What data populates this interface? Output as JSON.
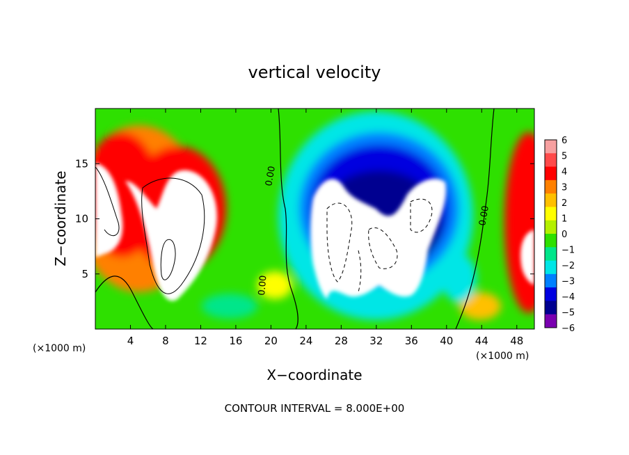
{
  "chart_data": {
    "type": "heatmap",
    "title": "vertical velocity",
    "xlabel": "X−coordinate",
    "ylabel": "Z−coordinate",
    "x_unit": "(×1000 m)",
    "y_unit": "(×1000 m)",
    "footer": "CONTOUR INTERVAL = 8.000E+00",
    "xlim": [
      0,
      50
    ],
    "ylim": [
      0,
      20
    ],
    "x_ticks": [
      4,
      8,
      12,
      16,
      20,
      24,
      28,
      32,
      36,
      40,
      44,
      48
    ],
    "y_ticks": [
      5,
      10,
      15
    ],
    "colorbar": {
      "ticks": [
        6,
        5,
        4,
        3,
        2,
        1,
        0,
        -1,
        -2,
        -3,
        -4,
        -5,
        -6
      ],
      "colors": [
        "#f7a0a0",
        "#ff4a4a",
        "#ff0000",
        "#ff8000",
        "#ffc000",
        "#ffff00",
        "#b4f000",
        "#2ee000",
        "#00e68a",
        "#00e6e6",
        "#0080ff",
        "#0000e0",
        "#000090",
        "#7a00b0"
      ]
    },
    "contour_labels": [
      "0.00",
      "0.00",
      "0.00"
    ],
    "features": [
      {
        "kind": "updraft",
        "x": 7.5,
        "z": 9.5,
        "value": "> 6"
      },
      {
        "kind": "updraft",
        "x": 1.5,
        "z": 12.0,
        "value": "> 6"
      },
      {
        "kind": "updraft",
        "x": 49.0,
        "z": 7.0,
        "value": "> 6"
      },
      {
        "kind": "downdraft",
        "x": 32.0,
        "z": 8.0,
        "value": "< -6"
      }
    ]
  }
}
